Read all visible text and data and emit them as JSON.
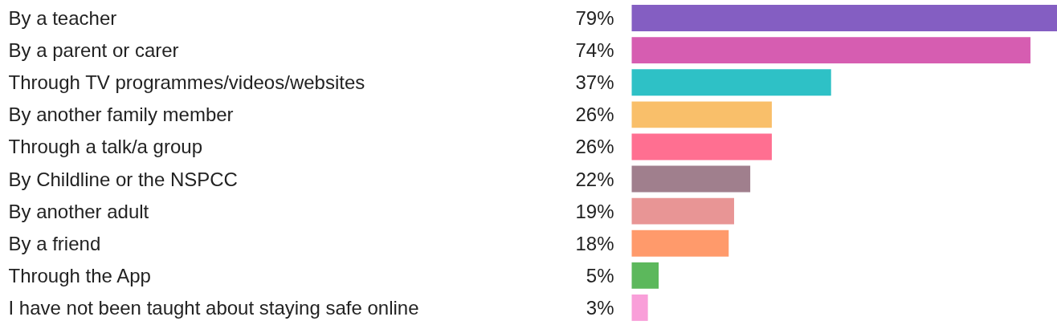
{
  "chart_data": {
    "type": "bar",
    "orientation": "horizontal",
    "categories": [
      "By a teacher",
      "By a parent or carer",
      "Through TV programmes/videos/websites",
      "By another family member",
      "Through a talk/a group",
      "By Childline or the NSPCC",
      "By another adult",
      "By a friend",
      "Through the App",
      "I have not been taught about staying safe online"
    ],
    "values": [
      79,
      74,
      37,
      26,
      26,
      22,
      19,
      18,
      5,
      3
    ],
    "value_labels": [
      "79%",
      "74%",
      "37%",
      "26%",
      "26%",
      "22%",
      "19%",
      "18%",
      "5%",
      "3%"
    ],
    "colors": [
      "#845ec2",
      "#d65db1",
      "#2ec1c6",
      "#f9bf6a",
      "#ff6f91",
      "#a07f8d",
      "#e89595",
      "#ff9a6b",
      "#5cb85c",
      "#f99fd9"
    ]
  }
}
